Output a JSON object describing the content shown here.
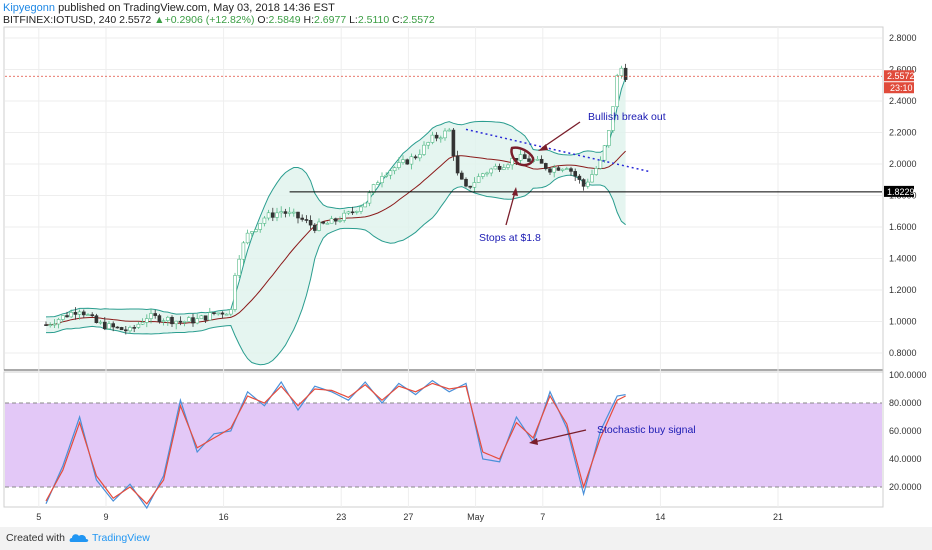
{
  "header": {
    "author": "Kipyegonn",
    "published": "published on TradingView.com, May 03, 2018 14:36 EST",
    "symbol": "BITFINEX:IOTUSD, 240",
    "last": "2.5572",
    "change_arrow": "▲",
    "change": "+0.2906 (+12.82%)",
    "o_label": "O:",
    "o": "2.5849",
    "h_label": "H:",
    "h": "2.6977",
    "l_label": "L:",
    "l": "2.5110",
    "c_label": "C:",
    "c": "2.5572"
  },
  "annotations": {
    "bullish": "Bullish break out",
    "stops": "Stops at $1.8",
    "stoch": "Stochastic buy signal"
  },
  "price_tags": {
    "current": "2.5572",
    "countdown": "23:10",
    "support": "1.8229"
  },
  "footer": {
    "created_with": "Created with",
    "brand": "TradingView"
  },
  "colors": {
    "bull": "#53b987",
    "bear": "#333333",
    "band": "#2a9d8f",
    "band_fill": "#dff2ec",
    "basis": "#8b1a1a",
    "stoch_k": "#4a90d9",
    "stoch_d": "#e74c3c",
    "stoch_fill": "#e3c8f7",
    "price_tag": "#e04b3b",
    "annotation": "#1a1ab3",
    "arrow": "#7a1e2b"
  },
  "chart_data": [
    {
      "type": "candlestick",
      "symbol": "BITFINEX:IOTUSD",
      "interval": "240",
      "y_ticks": [
        "2.8000",
        "2.6000",
        "2.4000",
        "2.2000",
        "2.0000",
        "1.8000",
        "1.6000",
        "1.4000",
        "1.2000",
        "1.0000",
        "0.8000"
      ],
      "x_ticks": [
        "5",
        "9",
        "16",
        "23",
        "27",
        "May",
        "7",
        "14",
        "21"
      ],
      "ylim": [
        0.7,
        2.9
      ],
      "current_price": 2.5572,
      "support_level": 1.8229,
      "trendline": {
        "from": [
          25.0,
          2.22
        ],
        "to": [
          36.0,
          1.95
        ]
      },
      "price_path": [
        [
          0.0,
          0.98
        ],
        [
          1.0,
          1.03
        ],
        [
          2.0,
          1.08
        ],
        [
          3.0,
          0.99
        ],
        [
          4.0,
          0.96
        ],
        [
          5.0,
          0.94
        ],
        [
          6.0,
          1.03
        ],
        [
          7.0,
          1.02
        ],
        [
          8.0,
          1.0
        ],
        [
          9.0,
          1.01
        ],
        [
          10.0,
          1.05
        ],
        [
          11.0,
          1.07
        ],
        [
          11.3,
          1.36
        ],
        [
          11.6,
          1.45
        ],
        [
          12.0,
          1.55
        ],
        [
          13.0,
          1.66
        ],
        [
          14.0,
          1.7
        ],
        [
          15.0,
          1.66
        ],
        [
          16.0,
          1.6
        ],
        [
          17.0,
          1.63
        ],
        [
          18.0,
          1.68
        ],
        [
          19.0,
          1.76
        ],
        [
          20.0,
          1.94
        ],
        [
          21.0,
          1.99
        ],
        [
          22.0,
          2.05
        ],
        [
          23.0,
          2.16
        ],
        [
          24.0,
          2.21
        ],
        [
          24.5,
          1.93
        ],
        [
          25.0,
          1.84
        ],
        [
          26.0,
          1.94
        ],
        [
          27.0,
          1.99
        ],
        [
          28.0,
          2.04
        ],
        [
          29.0,
          2.02
        ],
        [
          30.0,
          1.97
        ],
        [
          31.0,
          1.99
        ],
        [
          32.0,
          1.86
        ],
        [
          33.0,
          2.01
        ],
        [
          33.5,
          2.2
        ],
        [
          34.0,
          2.55
        ],
        [
          34.3,
          2.62
        ],
        [
          34.5,
          2.56
        ]
      ]
    },
    {
      "type": "line",
      "name": "Stochastic",
      "y_ticks": [
        "100.0000",
        "80.0000",
        "60.0000",
        "40.0000",
        "20.0000"
      ],
      "ylim": [
        0,
        100
      ],
      "levels": [
        20,
        80
      ],
      "k": [
        [
          0.0,
          8
        ],
        [
          1.0,
          35
        ],
        [
          2.0,
          70
        ],
        [
          3.0,
          25
        ],
        [
          4.0,
          10
        ],
        [
          5.0,
          22
        ],
        [
          6.0,
          5
        ],
        [
          7.0,
          28
        ],
        [
          8.0,
          82
        ],
        [
          9.0,
          45
        ],
        [
          10.0,
          58
        ],
        [
          11.0,
          60
        ],
        [
          12.0,
          88
        ],
        [
          13.0,
          78
        ],
        [
          14.0,
          95
        ],
        [
          15.0,
          75
        ],
        [
          16.0,
          92
        ],
        [
          17.0,
          88
        ],
        [
          18.0,
          82
        ],
        [
          19.0,
          95
        ],
        [
          20.0,
          80
        ],
        [
          21.0,
          94
        ],
        [
          22.0,
          86
        ],
        [
          23.0,
          96
        ],
        [
          24.0,
          88
        ],
        [
          25.0,
          94
        ],
        [
          26.0,
          40
        ],
        [
          27.0,
          38
        ],
        [
          28.0,
          70
        ],
        [
          29.0,
          52
        ],
        [
          30.0,
          88
        ],
        [
          31.0,
          62
        ],
        [
          32.0,
          15
        ],
        [
          33.0,
          60
        ],
        [
          34.0,
          85
        ],
        [
          34.5,
          86
        ]
      ],
      "d": [
        [
          0.0,
          10
        ],
        [
          1.0,
          32
        ],
        [
          2.0,
          66
        ],
        [
          3.0,
          28
        ],
        [
          4.0,
          12
        ],
        [
          5.0,
          20
        ],
        [
          6.0,
          8
        ],
        [
          7.0,
          25
        ],
        [
          8.0,
          78
        ],
        [
          9.0,
          48
        ],
        [
          10.0,
          55
        ],
        [
          11.0,
          62
        ],
        [
          12.0,
          85
        ],
        [
          13.0,
          80
        ],
        [
          14.0,
          92
        ],
        [
          15.0,
          78
        ],
        [
          16.0,
          90
        ],
        [
          17.0,
          89
        ],
        [
          18.0,
          84
        ],
        [
          19.0,
          93
        ],
        [
          20.0,
          82
        ],
        [
          21.0,
          92
        ],
        [
          22.0,
          88
        ],
        [
          23.0,
          94
        ],
        [
          24.0,
          90
        ],
        [
          25.0,
          92
        ],
        [
          26.0,
          45
        ],
        [
          27.0,
          40
        ],
        [
          28.0,
          66
        ],
        [
          29.0,
          55
        ],
        [
          30.0,
          85
        ],
        [
          31.0,
          65
        ],
        [
          32.0,
          20
        ],
        [
          33.0,
          55
        ],
        [
          34.0,
          82
        ],
        [
          34.5,
          85
        ]
      ]
    }
  ]
}
